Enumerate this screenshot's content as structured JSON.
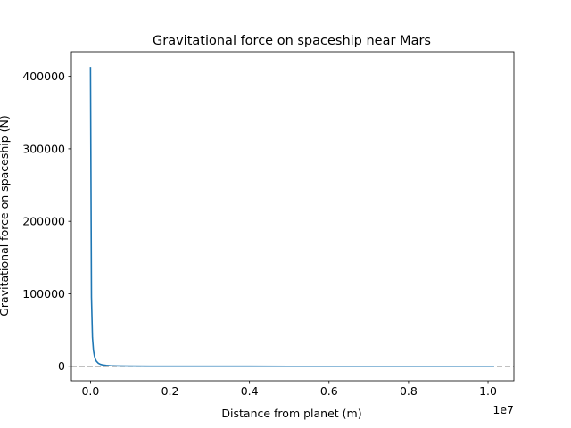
{
  "chart_data": {
    "type": "line",
    "title": "Gravitational force on spaceship near Mars",
    "xlabel": "Distance from planet (m)",
    "ylabel": "Gravitational force on spaceship (N)",
    "x_offset_text": "1e7",
    "xlim": [
      -480000,
      10650000
    ],
    "ylim": [
      -20000,
      434000
    ],
    "x_ticks": [
      0,
      2000000,
      4000000,
      6000000,
      8000000,
      10000000
    ],
    "x_tick_labels": [
      "0.0",
      "0.2",
      "0.4",
      "0.6",
      "0.8",
      "1.0"
    ],
    "y_ticks": [
      0,
      100000,
      200000,
      300000,
      400000
    ],
    "y_tick_labels": [
      "0",
      "100000",
      "200000",
      "300000",
      "400000"
    ],
    "grid": false,
    "legend": "none",
    "reference_line": {
      "y": 0,
      "style": "dashed",
      "color": "#808080"
    },
    "series": [
      {
        "color": "#1f77b4",
        "x": [
          0,
          25000,
          50000,
          75000,
          100000,
          125000,
          150000,
          200000,
          250000,
          300000,
          400000,
          500000,
          700000,
          1000000,
          1500000,
          2000000,
          3000000,
          4000000,
          5000000,
          6000000,
          7000000,
          8000000,
          9000000,
          10000000,
          10150000
        ],
        "y": [
          413000,
          95000,
          40000,
          22000,
          14000,
          9500,
          6900,
          4100,
          2700,
          1950,
          1150,
          760,
          400,
          200,
          90,
          52,
          23,
          13,
          8.3,
          5.8,
          4.3,
          3.3,
          2.6,
          2.1,
          2.0
        ]
      }
    ]
  }
}
